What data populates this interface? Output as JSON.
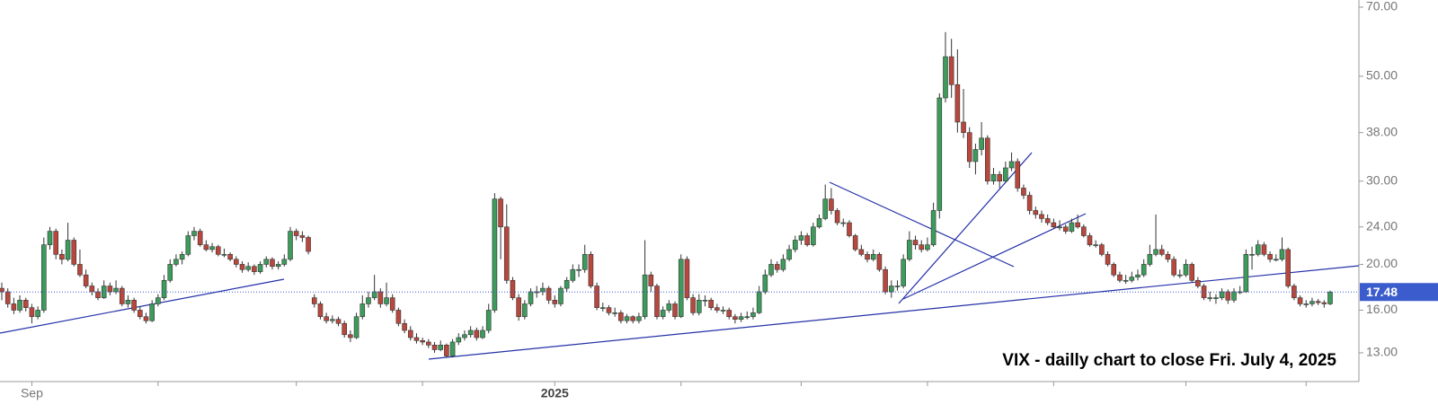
{
  "chart_data": {
    "type": "candlestick",
    "annotation": "VIX - dailly chart to close Fri. July 4, 2025",
    "log_scale": true,
    "ylim": [
      11.3,
      70
    ],
    "yticks": [
      {
        "value": 70,
        "label": "70.00"
      },
      {
        "value": 50,
        "label": "50.00"
      },
      {
        "value": 38,
        "label": "38.00"
      },
      {
        "value": 30,
        "label": "30.00"
      },
      {
        "value": 24,
        "label": "24.00"
      },
      {
        "value": 20,
        "label": "20.00"
      },
      {
        "value": 16,
        "label": "16.00"
      },
      {
        "value": 13,
        "label": "13.00"
      }
    ],
    "xticks": [
      {
        "value": 5,
        "label": "Sep"
      },
      26,
      49,
      70,
      {
        "value": 92,
        "label": "2025"
      },
      113,
      133,
      154,
      175,
      197,
      217
    ],
    "up_color": "#3d9b5c",
    "down_color": "#b8473d",
    "last_price_color": "#3b5ccc",
    "candles": [
      [
        17.8,
        18.3,
        16.8,
        17.5
      ],
      [
        17.5,
        17.8,
        16.2,
        16.5
      ],
      [
        16.5,
        17,
        15.7,
        16
      ],
      [
        16,
        17.2,
        15.8,
        16.8
      ],
      [
        16.8,
        17,
        15.9,
        16.2
      ],
      [
        16.2,
        16.5,
        15,
        15.5
      ],
      [
        15.5,
        16.3,
        15.3,
        16
      ],
      [
        16,
        22.8,
        15.8,
        22
      ],
      [
        22,
        24,
        21.5,
        23.5
      ],
      [
        23.5,
        23.8,
        20.5,
        21
      ],
      [
        21,
        21.5,
        20,
        20.5
      ],
      [
        20.5,
        24.5,
        20.3,
        22.5
      ],
      [
        22.5,
        22.8,
        19.8,
        20
      ],
      [
        20,
        21.5,
        18.8,
        19
      ],
      [
        19,
        19.5,
        17.8,
        18
      ],
      [
        18,
        18.3,
        17.2,
        17.5
      ],
      [
        17.5,
        17.8,
        16.8,
        17
      ],
      [
        17,
        18.5,
        16.9,
        18
      ],
      [
        18,
        18.3,
        17.2,
        17.5
      ],
      [
        17.5,
        18.5,
        17.3,
        17.8
      ],
      [
        17.8,
        18,
        16.3,
        16.5
      ],
      [
        16.5,
        17.2,
        16.2,
        16.8
      ],
      [
        16.8,
        17,
        15.8,
        16
      ],
      [
        16,
        16.3,
        15.3,
        15.5
      ],
      [
        15.5,
        15.8,
        15,
        15.2
      ],
      [
        15.2,
        16.8,
        15.1,
        16.5
      ],
      [
        16.5,
        17.3,
        16.3,
        17
      ],
      [
        17,
        19,
        16.8,
        18.5
      ],
      [
        18.5,
        20.5,
        18.3,
        20
      ],
      [
        20,
        21,
        19.8,
        20.5
      ],
      [
        20.5,
        21.3,
        20,
        21
      ],
      [
        21,
        23.5,
        20.8,
        23
      ],
      [
        23,
        24,
        22.5,
        23.5
      ],
      [
        23.5,
        23.8,
        21.8,
        22
      ],
      [
        22,
        22.5,
        21.3,
        21.5
      ],
      [
        21.5,
        22.2,
        21.2,
        21.8
      ],
      [
        21.8,
        22,
        20.8,
        21
      ],
      [
        21,
        21.6,
        20.7,
        21
      ],
      [
        21,
        21.2,
        20.3,
        20.5
      ],
      [
        20.5,
        20.8,
        19.7,
        20
      ],
      [
        20,
        20.3,
        19.2,
        19.5
      ],
      [
        19.5,
        20.2,
        19.3,
        19.8
      ],
      [
        19.8,
        20,
        19,
        19.3
      ],
      [
        19.3,
        20.3,
        19.1,
        20
      ],
      [
        20,
        20.8,
        19.7,
        20.5
      ],
      [
        20.5,
        20.7,
        19.5,
        19.8
      ],
      [
        19.8,
        20.3,
        19.5,
        20
      ],
      [
        20,
        21,
        19.8,
        20.5
      ],
      [
        20.5,
        24,
        20.3,
        23.5
      ],
      [
        23.5,
        23.8,
        22.5,
        23
      ],
      [
        23,
        23.5,
        22.3,
        22.8
      ],
      [
        22.8,
        23,
        21,
        21.3
      ],
      [
        17,
        17.3,
        16.2,
        16.5
      ],
      [
        16.5,
        16.7,
        15.3,
        15.5
      ],
      [
        15.5,
        15.8,
        15,
        15.2
      ],
      [
        15.2,
        15.6,
        15,
        15.3
      ],
      [
        15.3,
        15.5,
        14.8,
        15
      ],
      [
        15,
        15.2,
        14,
        14.2
      ],
      [
        14.2,
        14.5,
        13.7,
        14
      ],
      [
        14,
        15.8,
        13.9,
        15.5
      ],
      [
        15.5,
        17.2,
        15.3,
        16.5
      ],
      [
        16.5,
        17.5,
        16.2,
        17
      ],
      [
        17,
        19,
        16.8,
        17.5
      ],
      [
        17.5,
        17.8,
        16.2,
        16.5
      ],
      [
        16.5,
        18.3,
        16.3,
        17
      ],
      [
        17,
        17.3,
        15.8,
        16
      ],
      [
        16,
        16.2,
        14.8,
        15
      ],
      [
        15,
        15.3,
        14.3,
        14.5
      ],
      [
        14.5,
        14.8,
        13.8,
        14
      ],
      [
        14,
        14.3,
        13.6,
        13.8
      ],
      [
        13.8,
        14,
        13.5,
        13.7
      ],
      [
        13.7,
        13.9,
        13.3,
        13.5
      ],
      [
        13.5,
        13.7,
        13,
        13.2
      ],
      [
        13.2,
        13.8,
        13.1,
        13.5
      ],
      [
        13.5,
        13.6,
        12.7,
        12.8
      ],
      [
        12.8,
        13.9,
        12.7,
        13.7
      ],
      [
        13.7,
        14.3,
        13.5,
        14
      ],
      [
        14,
        14.5,
        13.8,
        14.2
      ],
      [
        14.2,
        14.8,
        14,
        14.5
      ],
      [
        14.5,
        14.7,
        13.8,
        14
      ],
      [
        14,
        14.8,
        13.9,
        14.5
      ],
      [
        14.5,
        16.5,
        14.3,
        16
      ],
      [
        16,
        28.3,
        15.8,
        27.5
      ],
      [
        27.5,
        27.8,
        20.5,
        24
      ],
      [
        24,
        26.8,
        18.2,
        18.5
      ],
      [
        18.5,
        18.8,
        16.8,
        17
      ],
      [
        17,
        17.3,
        15.2,
        15.5
      ],
      [
        15.5,
        16.8,
        15.3,
        16.5
      ],
      [
        16.5,
        17.8,
        16.3,
        17.5
      ],
      [
        17.5,
        18,
        17,
        17.5
      ],
      [
        17.5,
        18.3,
        17.2,
        17.8
      ],
      [
        17.8,
        18,
        16.5,
        16.8
      ],
      [
        16.8,
        17.2,
        16.2,
        16.5
      ],
      [
        16.5,
        18,
        16.3,
        17.8
      ],
      [
        17.8,
        18.8,
        17.5,
        18.5
      ],
      [
        18.5,
        20,
        18.3,
        19.5
      ],
      [
        19.5,
        20,
        18.8,
        19.5
      ],
      [
        19.5,
        22,
        19.2,
        21
      ],
      [
        21,
        21.3,
        17.8,
        18
      ],
      [
        18,
        18.3,
        16,
        16.2
      ],
      [
        16.2,
        16.6,
        15.9,
        16.2
      ],
      [
        16.2,
        16.4,
        15.6,
        15.8
      ],
      [
        15.8,
        16.2,
        15.5,
        15.8
      ],
      [
        15.8,
        16,
        15,
        15.2
      ],
      [
        15.2,
        15.7,
        15,
        15.5
      ],
      [
        15.5,
        15.6,
        15,
        15.2
      ],
      [
        15.2,
        15.8,
        15,
        15.5
      ],
      [
        15.5,
        22.5,
        15.3,
        19
      ],
      [
        19,
        19.3,
        17.5,
        18
      ],
      [
        18,
        18.2,
        15.3,
        15.5
      ],
      [
        15.5,
        16.3,
        15.3,
        16
      ],
      [
        16,
        16.8,
        15.8,
        16.5
      ],
      [
        16.5,
        16.7,
        15.3,
        15.5
      ],
      [
        15.5,
        21,
        15.4,
        20.5
      ],
      [
        20.5,
        20.8,
        16.8,
        17
      ],
      [
        17,
        17.3,
        15.6,
        15.8
      ],
      [
        15.8,
        17.3,
        15.6,
        16.8
      ],
      [
        16.8,
        17.2,
        16.3,
        16.8
      ],
      [
        16.8,
        17,
        16,
        16.2
      ],
      [
        16.2,
        16.5,
        15.8,
        16
      ],
      [
        16,
        16.3,
        15.7,
        16
      ],
      [
        16,
        16.2,
        15.3,
        15.5
      ],
      [
        15.5,
        15.7,
        15,
        15.3
      ],
      [
        15.3,
        15.8,
        15.1,
        15.5
      ],
      [
        15.5,
        15.9,
        15.3,
        15.5
      ],
      [
        15.5,
        16.2,
        15.3,
        15.8
      ],
      [
        15.8,
        18,
        15.7,
        17.5
      ],
      [
        17.5,
        19.5,
        17.3,
        19
      ],
      [
        19,
        20.5,
        18.8,
        20
      ],
      [
        20,
        20.3,
        19.2,
        19.5
      ],
      [
        19.5,
        21,
        19.3,
        20.5
      ],
      [
        20.5,
        22,
        20.3,
        21.5
      ],
      [
        21.5,
        23,
        21.2,
        22.5
      ],
      [
        22.5,
        23.5,
        22,
        23
      ],
      [
        23,
        23.3,
        21.8,
        22
      ],
      [
        22,
        24.5,
        21.8,
        24
      ],
      [
        24,
        25.5,
        23.8,
        25
      ],
      [
        25,
        29.5,
        24.8,
        27.5
      ],
      [
        27.5,
        29,
        25.5,
        26
      ],
      [
        26,
        26.3,
        24.2,
        24.5
      ],
      [
        24.5,
        25,
        24,
        24.5
      ],
      [
        24.5,
        24.8,
        22.8,
        23
      ],
      [
        23,
        23.2,
        21.3,
        21.5
      ],
      [
        21.5,
        22,
        20.8,
        21
      ],
      [
        21,
        21.3,
        20.2,
        20.5
      ],
      [
        20.5,
        21.5,
        20.3,
        21
      ],
      [
        21,
        21.2,
        19.3,
        19.5
      ],
      [
        19.5,
        19.8,
        17.3,
        17.5
      ],
      [
        17.5,
        18.5,
        17,
        18
      ],
      [
        18,
        18.5,
        17.6,
        18
      ],
      [
        18,
        21,
        17.8,
        20.5
      ],
      [
        20.5,
        23.5,
        20.3,
        22.5
      ],
      [
        22.5,
        23,
        21.5,
        22
      ],
      [
        22,
        22.5,
        21.2,
        21.5
      ],
      [
        21.5,
        22.8,
        21.3,
        22
      ],
      [
        22,
        27,
        21.8,
        26
      ],
      [
        26,
        46,
        25,
        45
      ],
      [
        45,
        62,
        44,
        55
      ],
      [
        55,
        60,
        45,
        48
      ],
      [
        48,
        57,
        38,
        40
      ],
      [
        40,
        47,
        37,
        38
      ],
      [
        38,
        39,
        32,
        33
      ],
      [
        33,
        36,
        31,
        35
      ],
      [
        35,
        40,
        34,
        37
      ],
      [
        37,
        37.5,
        29.5,
        30
      ],
      [
        30,
        32,
        29.5,
        31
      ],
      [
        31,
        31.5,
        29,
        30
      ],
      [
        30,
        33,
        29.8,
        32
      ],
      [
        32,
        34.5,
        31.5,
        33
      ],
      [
        33,
        33.5,
        28.5,
        29
      ],
      [
        29,
        29.5,
        27.5,
        28
      ],
      [
        28,
        28.5,
        25.5,
        26
      ],
      [
        26,
        26.5,
        25,
        25.5
      ],
      [
        25.5,
        26,
        24.5,
        25
      ],
      [
        25,
        25.5,
        24.2,
        24.5
      ],
      [
        24.5,
        25,
        23.8,
        24
      ],
      [
        24,
        24.8,
        23.6,
        24
      ],
      [
        24,
        24.3,
        23.2,
        23.5
      ],
      [
        23.5,
        25,
        23.3,
        24.5
      ],
      [
        24.5,
        25.5,
        23.8,
        24
      ],
      [
        24,
        24.3,
        22.8,
        23
      ],
      [
        23,
        23.3,
        21.8,
        22
      ],
      [
        22,
        22.5,
        21.7,
        22
      ],
      [
        22,
        22.2,
        20.8,
        21
      ],
      [
        21,
        21.3,
        19.8,
        20
      ],
      [
        20,
        20.2,
        18.8,
        19
      ],
      [
        19,
        19.3,
        18.3,
        18.5
      ],
      [
        18.5,
        19,
        18.2,
        18.5
      ],
      [
        18.5,
        19.3,
        18.3,
        18.8
      ],
      [
        18.8,
        19.5,
        18.5,
        19
      ],
      [
        19,
        20.5,
        18.8,
        20
      ],
      [
        20,
        22,
        19.8,
        21
      ],
      [
        21,
        25.5,
        20.8,
        21.5
      ],
      [
        21.5,
        22,
        20.8,
        21
      ],
      [
        21,
        21.3,
        20.2,
        20.5
      ],
      [
        20.5,
        20.8,
        18.8,
        19
      ],
      [
        19,
        19.5,
        18.7,
        19
      ],
      [
        19,
        20.5,
        18.8,
        20
      ],
      [
        20,
        20.2,
        18.3,
        18.5
      ],
      [
        18.5,
        18.8,
        17.8,
        18
      ],
      [
        18,
        18.2,
        16.8,
        17
      ],
      [
        17,
        17.5,
        16.7,
        17
      ],
      [
        17,
        17.3,
        16.5,
        17
      ],
      [
        17,
        17.8,
        16.8,
        17.5
      ],
      [
        17.5,
        17.7,
        16.5,
        16.8
      ],
      [
        16.8,
        17.8,
        16.6,
        17.5
      ],
      [
        17.5,
        18,
        17.3,
        17.5
      ],
      [
        17.5,
        21.5,
        17.4,
        21
      ],
      [
        21,
        21.8,
        19.5,
        21
      ],
      [
        21,
        22.5,
        20.8,
        22
      ],
      [
        22,
        22.3,
        20.8,
        21
      ],
      [
        21,
        21.3,
        20.2,
        20.5
      ],
      [
        20.5,
        21,
        20.3,
        20.5
      ],
      [
        20.5,
        22.8,
        20.3,
        21.5
      ],
      [
        21.5,
        21.7,
        17.8,
        18
      ],
      [
        18,
        18.2,
        16.8,
        17
      ],
      [
        17,
        17.2,
        16.3,
        16.5
      ],
      [
        16.5,
        16.8,
        16.2,
        16.5
      ],
      [
        16.5,
        17,
        16.3,
        16.7
      ],
      [
        16.7,
        16.9,
        16.4,
        16.6
      ],
      [
        16.6,
        16.8,
        16.2,
        16.5
      ],
      [
        16.5,
        17.6,
        16.4,
        17.48
      ]
    ]
  }
}
